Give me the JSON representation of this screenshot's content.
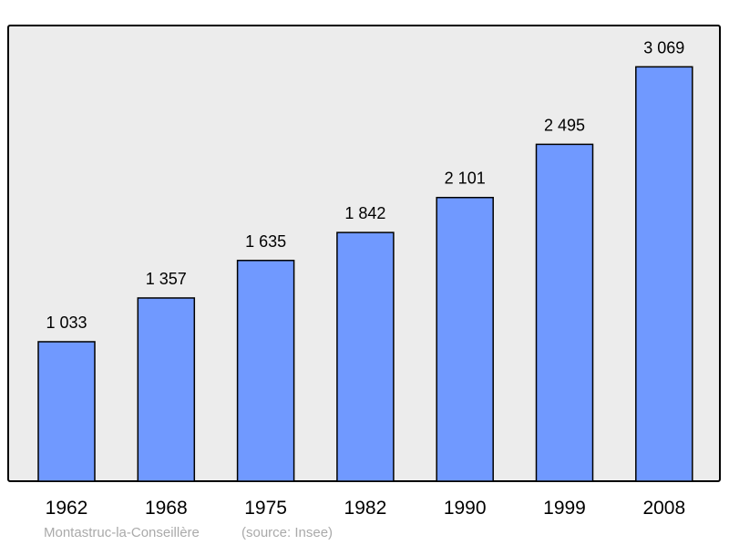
{
  "chart_data": {
    "type": "bar",
    "categories": [
      "1962",
      "1968",
      "1975",
      "1982",
      "1990",
      "1999",
      "2008"
    ],
    "values": [
      1033,
      1357,
      1635,
      1842,
      2101,
      2495,
      3069
    ],
    "value_labels": [
      "1 033",
      "1 357",
      "1 635",
      "1 842",
      "2 101",
      "2 495",
      "3 069"
    ],
    "title": "",
    "xlabel": "",
    "ylabel": "",
    "ylim": [
      0,
      3375
    ],
    "grid": false,
    "bar_color": "#7099ff",
    "background_color": "#ececec",
    "caption": {
      "place": "Montastruc-la-Conseillère",
      "source": "(source: Insee)"
    }
  }
}
